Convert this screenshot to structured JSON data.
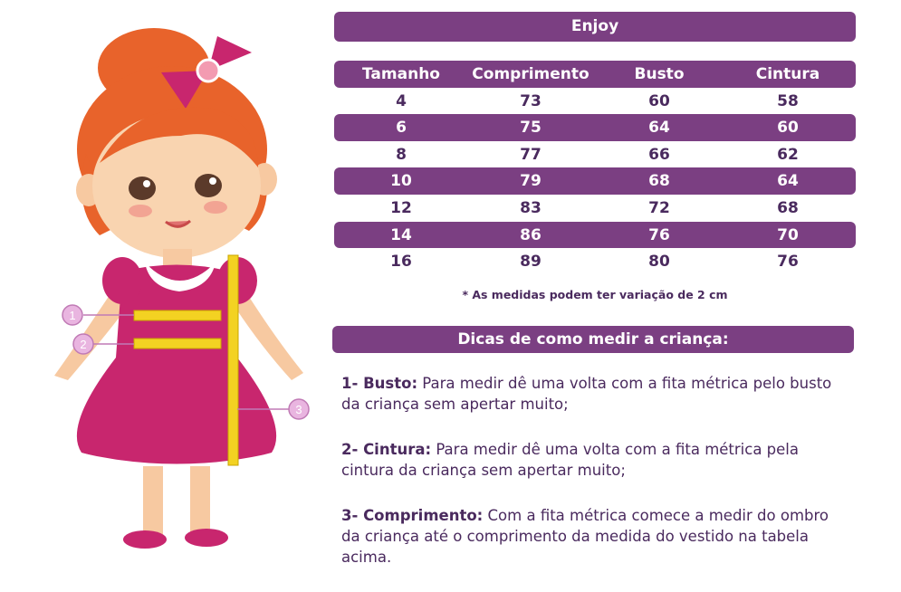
{
  "title": "Enjoy",
  "table": {
    "headers": [
      "Tamanho",
      "Comprimento",
      "Busto",
      "Cintura"
    ],
    "rows": [
      [
        "4",
        "73",
        "60",
        "58"
      ],
      [
        "6",
        "75",
        "64",
        "60"
      ],
      [
        "8",
        "77",
        "66",
        "62"
      ],
      [
        "10",
        "79",
        "68",
        "64"
      ],
      [
        "12",
        "83",
        "72",
        "68"
      ],
      [
        "14",
        "86",
        "76",
        "70"
      ],
      [
        "16",
        "89",
        "80",
        "76"
      ]
    ]
  },
  "note": "* As medidas podem ter variação de 2 cm",
  "tips_title": "Dicas de como medir a criança:",
  "tips": [
    {
      "label": "1- Busto:",
      "text": " Para medir dê uma volta com a fita métrica pelo busto da criança sem apertar muito;"
    },
    {
      "label": "2- Cintura:",
      "text": " Para medir dê uma volta com a fita métrica pela cintura da criança sem apertar muito;"
    },
    {
      "label": "3- Comprimento:",
      "text": " Com a fita métrica comece a medir do ombro da criança até o comprimento da medida do vestido na tabela acima."
    }
  ],
  "markers": [
    "1",
    "2",
    "3"
  ],
  "colors": {
    "accent": "#7b3f82",
    "dress": "#c8266e",
    "hair": "#e8632b",
    "tape": "#f3d222"
  }
}
